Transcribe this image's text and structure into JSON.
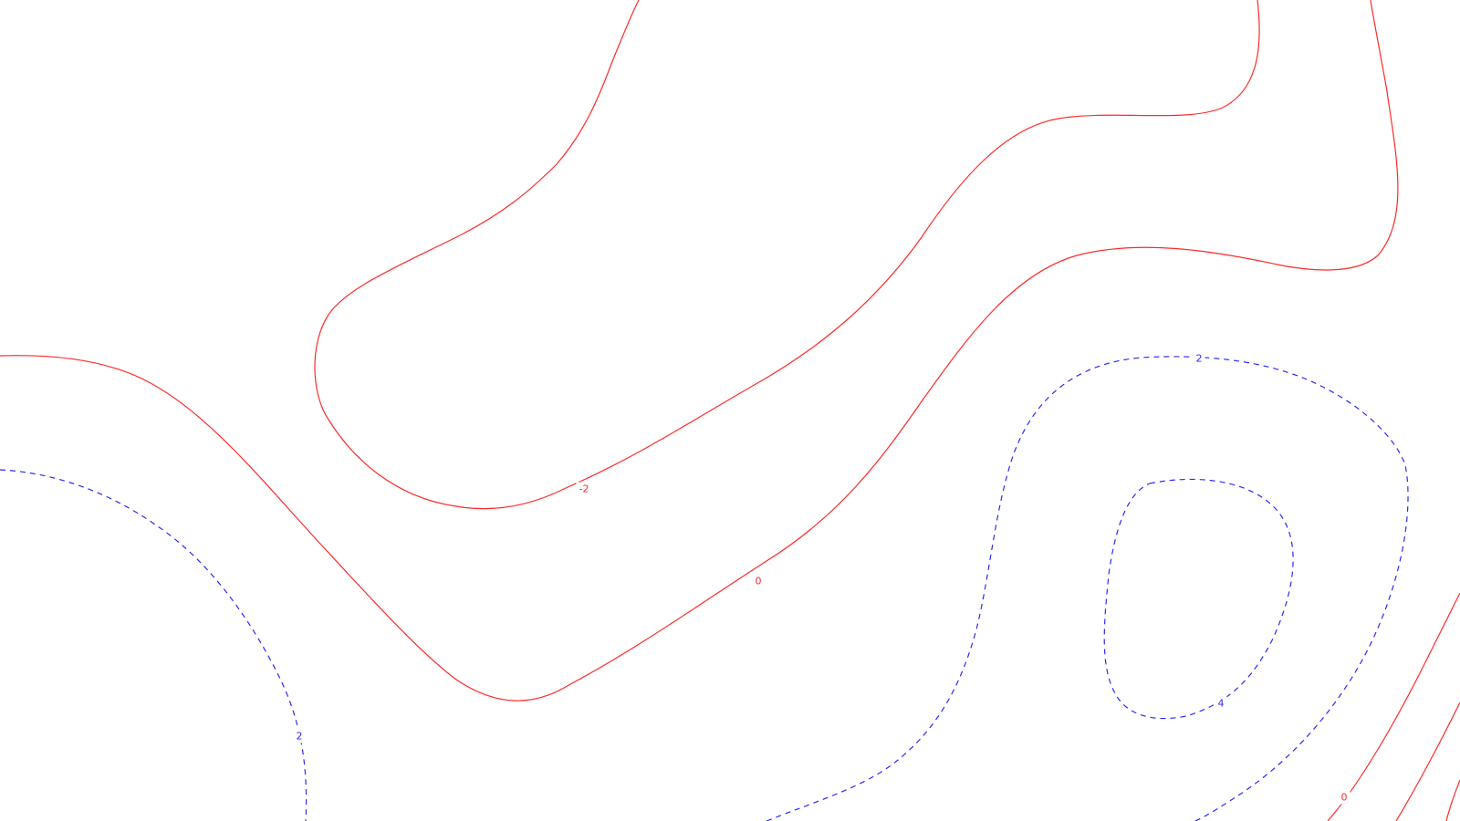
{
  "chart_data": {
    "type": "contour",
    "grid": false,
    "legend": "none",
    "colors": {
      "background": "#ffffff",
      "negative_or_zero": "#ff2a2a",
      "positive": "#2b2bff"
    },
    "line_styles": {
      "negative_or_zero": "solid",
      "positive": "dashed"
    },
    "contour_labels": [
      {
        "id": "label-neg2",
        "text": "-2",
        "level": -2
      },
      {
        "id": "label-zero-main",
        "text": "0",
        "level": 0
      },
      {
        "id": "label-zero-br",
        "text": "0",
        "level": 0
      },
      {
        "id": "label-pos2-left",
        "text": "2",
        "level": 2
      },
      {
        "id": "label-pos2-right",
        "text": "2",
        "level": 2
      },
      {
        "id": "label-pos4",
        "text": "4",
        "level": 4
      }
    ]
  }
}
